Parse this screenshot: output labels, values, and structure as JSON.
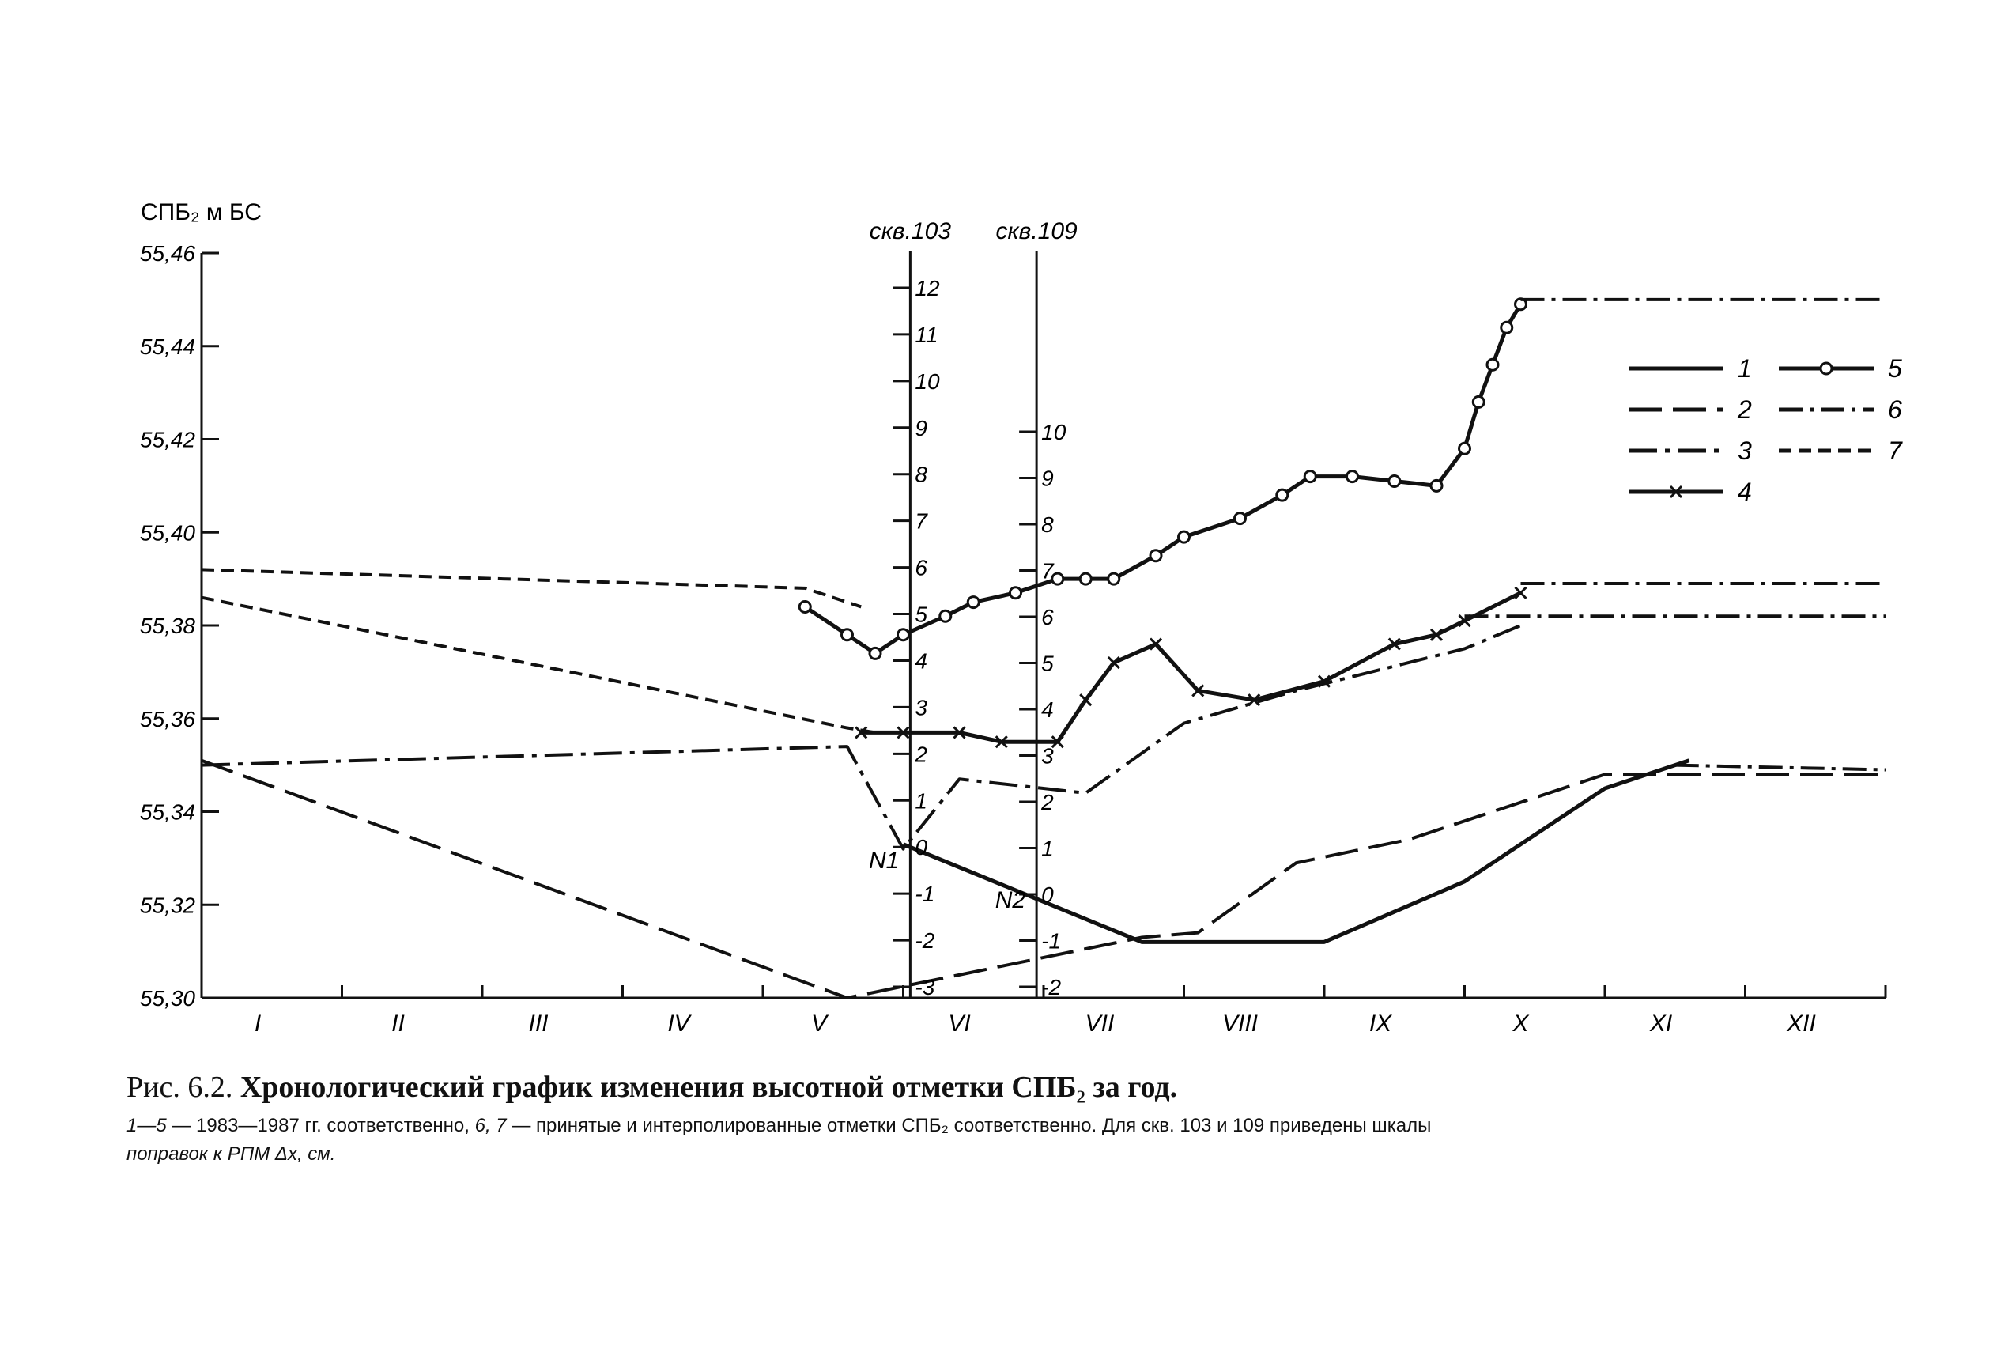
{
  "chart_data": {
    "type": "line",
    "ylabel": "СПБ₂ м БС",
    "ylim": [
      55.3,
      55.46
    ],
    "y_ticks": [
      "55,46",
      "55,44",
      "55,42",
      "55,40",
      "55,38",
      "55,36",
      "55,34",
      "55,32",
      "55,30"
    ],
    "xlim": [
      0,
      12
    ],
    "categories": [
      "I",
      "II",
      "III",
      "IV",
      "V",
      "VI",
      "VII",
      "VIII",
      "IX",
      "X",
      "XI",
      "XII"
    ],
    "legend_position": "top-right",
    "series": [
      {
        "name": "1",
        "style": "solid",
        "x": [
          5.0,
          6.7,
          7.1,
          8.0,
          9.0,
          10.0,
          10.6
        ],
        "y": [
          55.333,
          55.312,
          55.312,
          55.312,
          55.325,
          55.345,
          55.351
        ]
      },
      {
        "name": "2",
        "style": "dash",
        "x": [
          0.0,
          4.6,
          6.7,
          7.1,
          7.8,
          8.6,
          10.0,
          10.6,
          12.0
        ],
        "y": [
          55.351,
          55.3,
          55.313,
          55.314,
          55.329,
          55.334,
          55.348,
          55.348,
          55.348
        ]
      },
      {
        "name": "3",
        "style": "dashdot",
        "x": [
          0.0,
          4.6,
          5.0,
          5.4,
          6.3,
          7.0,
          7.8,
          9.0,
          9.4
        ],
        "y": [
          55.35,
          55.354,
          55.332,
          55.347,
          55.344,
          55.359,
          55.366,
          55.375,
          55.38
        ]
      },
      {
        "name": "4",
        "style": "cross",
        "x": [
          4.7,
          5.0,
          5.4,
          5.7,
          6.1,
          6.3,
          6.5,
          6.8,
          7.1,
          7.5,
          8.0,
          8.5,
          8.8,
          9.0,
          9.4
        ],
        "y": [
          55.357,
          55.357,
          55.357,
          55.355,
          55.355,
          55.364,
          55.372,
          55.376,
          55.366,
          55.364,
          55.368,
          55.376,
          55.378,
          55.381,
          55.387
        ]
      },
      {
        "name": "5",
        "style": "circle",
        "x": [
          4.3,
          4.6,
          4.8,
          5.0,
          5.3,
          5.5,
          5.8,
          6.1,
          6.3,
          6.5,
          6.8,
          7.0,
          7.4,
          7.7,
          7.9,
          8.2,
          8.5,
          8.8,
          9.0,
          9.1,
          9.2,
          9.3,
          9.4
        ],
        "y": [
          55.384,
          55.378,
          55.374,
          55.378,
          55.382,
          55.385,
          55.387,
          55.39,
          55.39,
          55.39,
          55.395,
          55.399,
          55.403,
          55.408,
          55.412,
          55.412,
          55.411,
          55.41,
          55.418,
          55.428,
          55.436,
          55.444,
          55.449
        ]
      },
      {
        "name": "6",
        "style": "dashdotdot",
        "x": [
          9.4,
          12.0
        ],
        "y": [
          55.45,
          55.45
        ]
      },
      {
        "name": "6",
        "style": "dashdotdot",
        "x": [
          9.4,
          12.0
        ],
        "y": [
          55.389,
          55.389
        ]
      },
      {
        "name": "6",
        "style": "dashdotdot",
        "x": [
          9.0,
          12.0
        ],
        "y": [
          55.382,
          55.382
        ]
      },
      {
        "name": "6",
        "style": "dashdotdot",
        "x": [
          10.5,
          12.0
        ],
        "y": [
          55.35,
          55.349
        ]
      },
      {
        "name": "7",
        "style": "shortdash",
        "x": [
          0.0,
          4.3,
          4.7
        ],
        "y": [
          55.392,
          55.388,
          55.384
        ]
      },
      {
        "name": "7",
        "style": "shortdash",
        "x": [
          0.0,
          4.6,
          4.8
        ],
        "y": [
          55.386,
          55.358,
          55.357
        ]
      }
    ],
    "secondary_axes": [
      {
        "label": "скв.103",
        "x": 5.05,
        "ticks": [
          12,
          11,
          10,
          9,
          8,
          7,
          6,
          5,
          4,
          3,
          2,
          1,
          0,
          -1,
          -2,
          -3
        ],
        "marker": "N1"
      },
      {
        "label": "скв.109",
        "x": 5.95,
        "ticks": [
          10,
          9,
          8,
          7,
          6,
          5,
          4,
          3,
          2,
          1,
          0,
          -1,
          -2
        ],
        "marker": "N2"
      }
    ]
  },
  "caption": {
    "title_prefix": "Рис. 6.2.",
    "title_text": "Хронологический график изменения высотной отметки СПБ₂ за год.",
    "notes_range": "1—5",
    "notes_years": "— 1983—1987 гг. соответственно,",
    "notes_range2": "6, 7",
    "notes_rest": "— принятые и интерполированные отметки СПБ₂ соответственно. Для скв. 103 и 109 приведены шкалы",
    "notes_line2": "поправок к РПМ Δx, см."
  }
}
